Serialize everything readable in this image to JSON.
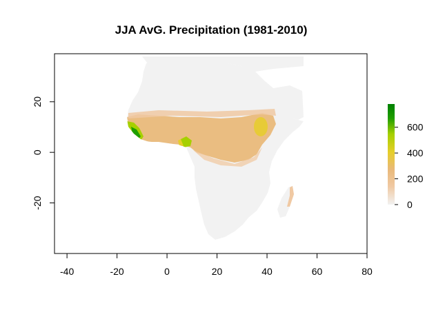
{
  "chart_data": {
    "type": "heatmap",
    "title": "JJA AvG. Precipitation (1981-2010)",
    "xlabel": "",
    "ylabel": "",
    "xlim": [
      -45,
      80
    ],
    "ylim": [
      -40,
      39
    ],
    "x_ticks": [
      -40,
      -20,
      0,
      20,
      40,
      60,
      80
    ],
    "y_ticks": [
      -20,
      0,
      20
    ],
    "colorbar": {
      "ticks": [
        0,
        200,
        400,
        600
      ],
      "range": [
        0,
        780
      ],
      "colors": [
        "#f2f2f2",
        "#f0c9a3",
        "#e9b97a",
        "#e6ce2a",
        "#a6d000",
        "#1f9e00",
        "#008000"
      ]
    },
    "grid": false,
    "legend": "right",
    "data_extent": {
      "lon": [
        -18,
        55
      ],
      "lat": [
        -35,
        38
      ]
    }
  }
}
